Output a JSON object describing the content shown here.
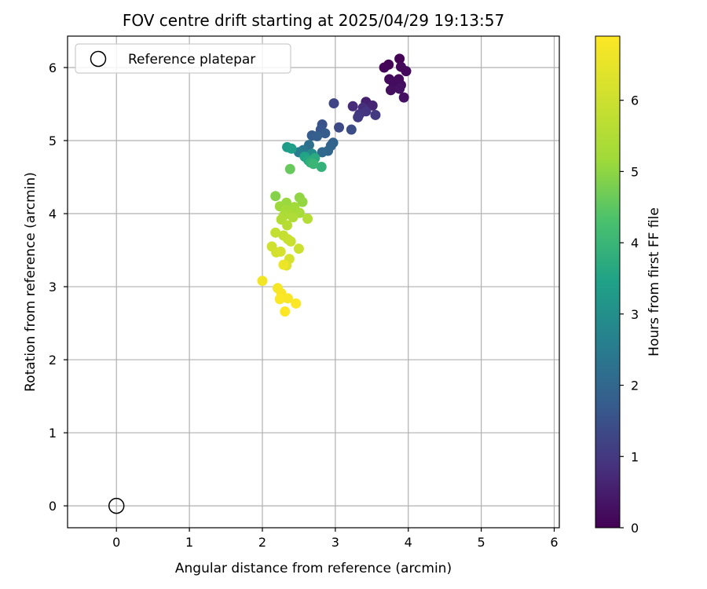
{
  "chart_data": {
    "type": "scatter",
    "title": "FOV centre drift starting at 2025/04/29 19:13:57",
    "xlabel": "Angular distance from reference (arcmin)",
    "ylabel": "Rotation from reference (arcmin)",
    "xlim": [
      -0.67,
      6.07
    ],
    "ylim": [
      -0.3,
      6.43
    ],
    "xticks": [
      0,
      1,
      2,
      3,
      4,
      5,
      6
    ],
    "yticks": [
      0,
      1,
      2,
      3,
      4,
      5,
      6
    ],
    "grid": true,
    "legend": {
      "position": "top-left",
      "entries": [
        "Reference platepar"
      ]
    },
    "reference_point": {
      "x": 0,
      "y": 0
    },
    "colorbar": {
      "label": "Hours from first FF file",
      "min": 0,
      "max": 6.9,
      "ticks": [
        0,
        1,
        2,
        3,
        4,
        5,
        6
      ],
      "colormap": "viridis"
    },
    "points": [
      {
        "x": 3.88,
        "y": 6.12,
        "c": 0.02
      },
      {
        "x": 3.73,
        "y": 6.04,
        "c": 0.05
      },
      {
        "x": 3.67,
        "y": 6.0,
        "c": 0.08
      },
      {
        "x": 3.9,
        "y": 6.01,
        "c": 0.1
      },
      {
        "x": 3.97,
        "y": 5.95,
        "c": 0.12
      },
      {
        "x": 3.74,
        "y": 5.84,
        "c": 0.15
      },
      {
        "x": 3.87,
        "y": 5.84,
        "c": 0.18
      },
      {
        "x": 3.8,
        "y": 5.78,
        "c": 0.2
      },
      {
        "x": 3.9,
        "y": 5.76,
        "c": 0.22
      },
      {
        "x": 3.76,
        "y": 5.69,
        "c": 0.25
      },
      {
        "x": 3.88,
        "y": 5.71,
        "c": 0.28
      },
      {
        "x": 3.94,
        "y": 5.59,
        "c": 0.3
      },
      {
        "x": 3.42,
        "y": 5.53,
        "c": 0.55
      },
      {
        "x": 3.51,
        "y": 5.48,
        "c": 0.65
      },
      {
        "x": 3.24,
        "y": 5.47,
        "c": 0.75
      },
      {
        "x": 3.38,
        "y": 5.45,
        "c": 0.8
      },
      {
        "x": 3.42,
        "y": 5.4,
        "c": 0.9
      },
      {
        "x": 3.33,
        "y": 5.36,
        "c": 0.95
      },
      {
        "x": 3.55,
        "y": 5.35,
        "c": 1.0
      },
      {
        "x": 3.31,
        "y": 5.32,
        "c": 1.05
      },
      {
        "x": 2.98,
        "y": 5.51,
        "c": 1.25
      },
      {
        "x": 3.05,
        "y": 5.18,
        "c": 1.35
      },
      {
        "x": 3.22,
        "y": 5.15,
        "c": 1.4
      },
      {
        "x": 2.82,
        "y": 5.22,
        "c": 1.55
      },
      {
        "x": 2.8,
        "y": 5.15,
        "c": 1.6
      },
      {
        "x": 2.86,
        "y": 5.1,
        "c": 1.7
      },
      {
        "x": 2.68,
        "y": 5.07,
        "c": 1.75
      },
      {
        "x": 2.75,
        "y": 5.06,
        "c": 1.8
      },
      {
        "x": 2.97,
        "y": 4.97,
        "c": 1.9
      },
      {
        "x": 2.94,
        "y": 4.93,
        "c": 1.95
      },
      {
        "x": 2.9,
        "y": 4.86,
        "c": 2.0
      },
      {
        "x": 2.82,
        "y": 4.84,
        "c": 2.05
      },
      {
        "x": 2.64,
        "y": 4.94,
        "c": 2.2
      },
      {
        "x": 2.56,
        "y": 4.87,
        "c": 2.4
      },
      {
        "x": 2.5,
        "y": 4.84,
        "c": 2.6
      },
      {
        "x": 2.68,
        "y": 4.82,
        "c": 2.9
      },
      {
        "x": 2.34,
        "y": 4.91,
        "c": 3.3
      },
      {
        "x": 2.4,
        "y": 4.89,
        "c": 3.4
      },
      {
        "x": 2.58,
        "y": 4.78,
        "c": 3.5
      },
      {
        "x": 2.63,
        "y": 4.73,
        "c": 3.6
      },
      {
        "x": 2.72,
        "y": 4.76,
        "c": 3.7
      },
      {
        "x": 2.66,
        "y": 4.7,
        "c": 3.8
      },
      {
        "x": 2.81,
        "y": 4.64,
        "c": 3.9
      },
      {
        "x": 2.7,
        "y": 4.68,
        "c": 4.0
      },
      {
        "x": 2.38,
        "y": 4.61,
        "c": 4.6
      },
      {
        "x": 2.18,
        "y": 4.24,
        "c": 4.9
      },
      {
        "x": 2.51,
        "y": 4.22,
        "c": 5.0
      },
      {
        "x": 2.55,
        "y": 4.16,
        "c": 5.05
      },
      {
        "x": 2.33,
        "y": 4.15,
        "c": 5.1
      },
      {
        "x": 2.24,
        "y": 4.1,
        "c": 5.15
      },
      {
        "x": 2.44,
        "y": 4.09,
        "c": 5.2
      },
      {
        "x": 2.32,
        "y": 4.05,
        "c": 5.25
      },
      {
        "x": 2.51,
        "y": 4.01,
        "c": 5.3
      },
      {
        "x": 2.38,
        "y": 3.99,
        "c": 5.35
      },
      {
        "x": 2.29,
        "y": 3.97,
        "c": 5.4
      },
      {
        "x": 2.42,
        "y": 3.95,
        "c": 5.45
      },
      {
        "x": 2.26,
        "y": 3.92,
        "c": 5.5
      },
      {
        "x": 2.62,
        "y": 3.93,
        "c": 5.55
      },
      {
        "x": 2.34,
        "y": 3.84,
        "c": 5.6
      },
      {
        "x": 2.18,
        "y": 3.74,
        "c": 5.8
      },
      {
        "x": 2.29,
        "y": 3.7,
        "c": 5.85
      },
      {
        "x": 2.35,
        "y": 3.65,
        "c": 5.9
      },
      {
        "x": 2.39,
        "y": 3.62,
        "c": 5.95
      },
      {
        "x": 2.5,
        "y": 3.52,
        "c": 6.0
      },
      {
        "x": 2.13,
        "y": 3.55,
        "c": 6.05
      },
      {
        "x": 2.19,
        "y": 3.47,
        "c": 6.1
      },
      {
        "x": 2.25,
        "y": 3.48,
        "c": 6.15
      },
      {
        "x": 2.37,
        "y": 3.38,
        "c": 6.2
      },
      {
        "x": 2.33,
        "y": 3.29,
        "c": 6.3
      },
      {
        "x": 2.29,
        "y": 3.3,
        "c": 6.6
      },
      {
        "x": 2.0,
        "y": 3.08,
        "c": 6.7
      },
      {
        "x": 2.21,
        "y": 2.98,
        "c": 6.75
      },
      {
        "x": 2.26,
        "y": 2.91,
        "c": 6.8
      },
      {
        "x": 2.35,
        "y": 2.84,
        "c": 6.82
      },
      {
        "x": 2.24,
        "y": 2.83,
        "c": 6.85
      },
      {
        "x": 2.46,
        "y": 2.77,
        "c": 6.88
      },
      {
        "x": 2.31,
        "y": 2.66,
        "c": 6.9
      }
    ]
  }
}
